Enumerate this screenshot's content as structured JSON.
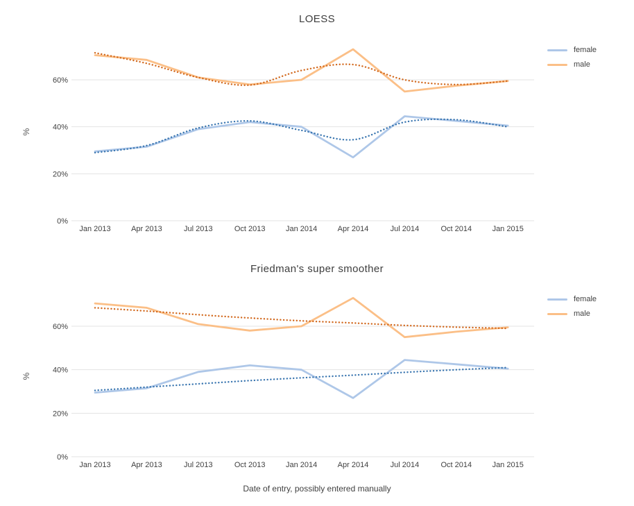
{
  "page": {
    "background": "#ffffff"
  },
  "colors": {
    "female_line": "#aec7e8",
    "male_line": "#fbbf87",
    "female_smoother": "#3a76b0",
    "male_smoother": "#d2691e",
    "gridline": "#e3e3e3",
    "axis_text": "#3f3f3f",
    "title_text": "#3d3d3d"
  },
  "chart_data": [
    {
      "type": "line",
      "title": "LOESS",
      "ylabel": "%",
      "xlabel": "",
      "categories": [
        "Jan 2013",
        "Apr 2013",
        "Jul 2013",
        "Oct 2013",
        "Jan 2014",
        "Apr 2014",
        "Jul 2014",
        "Oct 2014",
        "Jan 2015"
      ],
      "ytick_labels": [
        "0%",
        "20%",
        "40%",
        "60%"
      ],
      "ytick_values": [
        0,
        20,
        40,
        60
      ],
      "ylim": [
        0,
        76
      ],
      "grid": "horizontal",
      "legend": [
        "female",
        "male"
      ],
      "legend_position": "top-right",
      "series": [
        {
          "name": "female",
          "role": "data",
          "style": "solid",
          "color": "#aec7e8",
          "values": [
            29.5,
            31.5,
            39,
            42,
            40,
            27,
            44.5,
            42.5,
            40.5
          ]
        },
        {
          "name": "male",
          "role": "data",
          "style": "solid",
          "color": "#fbbf87",
          "values": [
            70.5,
            68.5,
            61,
            58,
            60,
            73,
            55,
            57.5,
            59.5
          ]
        },
        {
          "name": "female LOESS fit",
          "role": "smoother",
          "style": "dotted",
          "color": "#3a76b0",
          "values": [
            29,
            32,
            39.5,
            42.5,
            38.5,
            34.5,
            42,
            43,
            40
          ]
        },
        {
          "name": "male LOESS fit",
          "role": "smoother",
          "style": "dotted",
          "color": "#d2691e",
          "values": [
            71.5,
            67,
            61,
            57.8,
            64,
            66.5,
            60,
            58,
            59.5
          ]
        }
      ]
    },
    {
      "type": "line",
      "title": "Friedman's super smoother",
      "ylabel": "%",
      "xlabel": "Date of entry, possibly entered manually",
      "categories": [
        "Jan 2013",
        "Apr 2013",
        "Jul 2013",
        "Oct 2013",
        "Jan 2014",
        "Apr 2014",
        "Jul 2014",
        "Oct 2014",
        "Jan 2015"
      ],
      "ytick_labels": [
        "0%",
        "20%",
        "40%",
        "60%"
      ],
      "ytick_values": [
        0,
        20,
        40,
        60
      ],
      "ylim": [
        0,
        76
      ],
      "grid": "horizontal",
      "legend": [
        "female",
        "male"
      ],
      "legend_position": "top-right",
      "series": [
        {
          "name": "female",
          "role": "data",
          "style": "solid",
          "color": "#aec7e8",
          "values": [
            29.5,
            31.5,
            39,
            42,
            40,
            27,
            44.5,
            42.5,
            40.5
          ]
        },
        {
          "name": "male",
          "role": "data",
          "style": "solid",
          "color": "#fbbf87",
          "values": [
            70.5,
            68.5,
            61,
            58,
            60,
            73,
            55,
            57.5,
            59.5
          ]
        },
        {
          "name": "female super smoother fit",
          "role": "smoother",
          "style": "dotted",
          "color": "#3a76b0",
          "values": [
            30.5,
            32,
            33.5,
            35,
            36.3,
            37.5,
            38.8,
            40,
            41
          ]
        },
        {
          "name": "male super smoother fit",
          "role": "smoother",
          "style": "dotted",
          "color": "#d2691e",
          "values": [
            68.5,
            67,
            65.3,
            63.8,
            62.5,
            61.5,
            60.4,
            59.6,
            59
          ]
        }
      ]
    }
  ]
}
